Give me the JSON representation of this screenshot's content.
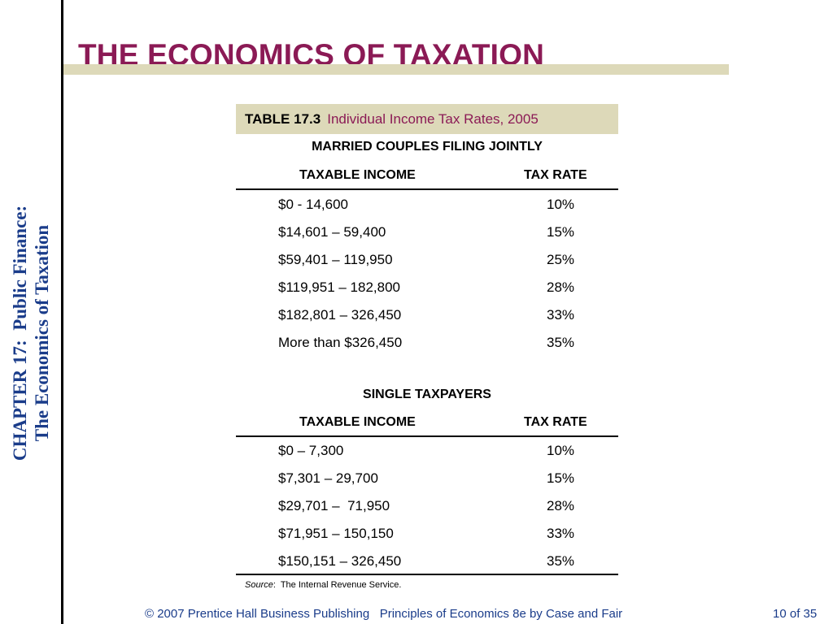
{
  "sidebar": {
    "chapter_line1": "CHAPTER 17:  Public Finance:",
    "chapter_line2": "The Economics of Taxation"
  },
  "slide": {
    "title": "THE ECONOMICS OF TAXATION"
  },
  "table": {
    "number": "TABLE 17.3",
    "caption": "Individual Income Tax Rates, 2005",
    "sections": [
      {
        "heading": "MARRIED COUPLES FILING JOINTLY",
        "col_income": "TAXABLE INCOME",
        "col_rate": "TAX RATE",
        "rows": [
          {
            "income": "$0 - 14,600",
            "rate": "10%"
          },
          {
            "income": "$14,601 – 59,400",
            "rate": "15%"
          },
          {
            "income": "$59,401 – 119,950",
            "rate": "25%"
          },
          {
            "income": "$119,951 – 182,800",
            "rate": "28%"
          },
          {
            "income": "$182,801 – 326,450",
            "rate": "33%"
          },
          {
            "income": "More than $326,450",
            "rate": "35%"
          }
        ]
      },
      {
        "heading": "SINGLE TAXPAYERS",
        "col_income": "TAXABLE INCOME",
        "col_rate": "TAX RATE",
        "rows": [
          {
            "income": "$0 – 7,300",
            "rate": "10%"
          },
          {
            "income": "$7,301 – 29,700",
            "rate": "15%"
          },
          {
            "income": "$29,701 –  71,950",
            "rate": "28%"
          },
          {
            "income": "$71,951 – 150,150",
            "rate": "33%"
          },
          {
            "income": "$150,151 – 326,450",
            "rate": "35%"
          }
        ]
      }
    ],
    "source_label": "Source",
    "source_text": ":  The Internal Revenue Service."
  },
  "footer": {
    "text": "© 2007 Prentice Hall Business Publishing   Principles of Economics 8e by Case and Fair",
    "page": "10 of 35"
  }
}
